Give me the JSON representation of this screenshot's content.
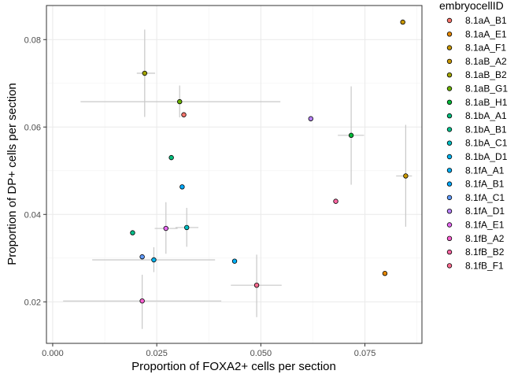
{
  "chart_data": {
    "type": "scatter",
    "xlabel": "Proportion of FOXA2+ cells per section",
    "ylabel": "Proportion of DP+ cells per section",
    "xlim": [
      -0.0015,
      0.0887
    ],
    "ylim": [
      0.0105,
      0.0878
    ],
    "x_ticks": [
      {
        "value": 0.0,
        "label": "0.000"
      },
      {
        "value": 0.025,
        "label": "0.025"
      },
      {
        "value": 0.05,
        "label": "0.050"
      },
      {
        "value": 0.075,
        "label": "0.075"
      }
    ],
    "y_ticks": [
      {
        "value": 0.02,
        "label": "0.02"
      },
      {
        "value": 0.04,
        "label": "0.04"
      },
      {
        "value": 0.06,
        "label": "0.06"
      },
      {
        "value": 0.08,
        "label": "0.08"
      }
    ],
    "grid": true,
    "legend_position": "right",
    "legend_title": "embryocellID",
    "errorbar_color": "#c8c8c8",
    "series": [
      {
        "name": "8.1aA_B1",
        "color": "#F8766D",
        "x": 0.0315,
        "y": 0.0628,
        "xerr": null,
        "yerr": null
      },
      {
        "name": "8.1aA_E1",
        "color": "#E58700",
        "x": 0.0798,
        "y": 0.0265,
        "xerr": null,
        "yerr": null
      },
      {
        "name": "8.1aA_F1",
        "color": "#C99800",
        "x": 0.0841,
        "y": 0.084,
        "xerr": null,
        "yerr": null
      },
      {
        "name": "8.1aB_A2",
        "color": "#C99800",
        "x": 0.0848,
        "y": 0.0488,
        "xerr": [
          0.0825,
          0.0863
        ],
        "yerr": [
          0.0372,
          0.0605
        ]
      },
      {
        "name": "8.1aB_B2",
        "color": "#A3A500",
        "x": 0.0221,
        "y": 0.0723,
        "xerr": [
          0.0202,
          0.0246
        ],
        "yerr": [
          0.0623,
          0.0823
        ]
      },
      {
        "name": "8.1aB_G1",
        "color": "#6BB100",
        "x": 0.0305,
        "y": 0.0658,
        "xerr": [
          0.0067,
          0.0547
        ],
        "yerr": [
          0.0622,
          0.0695
        ]
      },
      {
        "name": "8.1aB_H1",
        "color": "#00BA38",
        "x": 0.0717,
        "y": 0.0581,
        "xerr": [
          0.0685,
          0.0748
        ],
        "yerr": [
          0.0468,
          0.0693
        ]
      },
      {
        "name": "8.1bA_A1",
        "color": "#00BF7D",
        "x": 0.0285,
        "y": 0.053,
        "xerr": null,
        "yerr": null
      },
      {
        "name": "8.1bA_B1",
        "color": "#00C08B",
        "x": 0.0192,
        "y": 0.0358,
        "xerr": null,
        "yerr": null
      },
      {
        "name": "8.1bA_C1",
        "color": "#00BFC4",
        "x": 0.0322,
        "y": 0.037,
        "xerr": [
          0.0295,
          0.035
        ],
        "yerr": [
          0.0326,
          0.0415
        ]
      },
      {
        "name": "8.1bA_D1",
        "color": "#00B4F0",
        "x": 0.0243,
        "y": 0.0296,
        "xerr": [
          0.0095,
          0.039
        ],
        "yerr": [
          0.0268,
          0.0325
        ]
      },
      {
        "name": "8.1fA_A1",
        "color": "#00B0F6",
        "x": 0.0437,
        "y": 0.0293,
        "xerr": null,
        "yerr": null
      },
      {
        "name": "8.1fA_B1",
        "color": "#00A9FF",
        "x": 0.0311,
        "y": 0.0463,
        "xerr": null,
        "yerr": null
      },
      {
        "name": "8.1fA_C1",
        "color": "#619CFF",
        "x": 0.0215,
        "y": 0.0303,
        "xerr": null,
        "yerr": null
      },
      {
        "name": "8.1fA_D1",
        "color": "#B983FF",
        "x": 0.062,
        "y": 0.0619,
        "xerr": null,
        "yerr": null
      },
      {
        "name": "8.1fA_E1",
        "color": "#E76BF3",
        "x": 0.0272,
        "y": 0.0368,
        "xerr": [
          0.0245,
          0.03
        ],
        "yerr": [
          0.031,
          0.0428
        ]
      },
      {
        "name": "8.1fB_A2",
        "color": "#FD61D1",
        "x": 0.0215,
        "y": 0.0202,
        "xerr": [
          0.0025,
          0.0405
        ],
        "yerr": [
          0.0138,
          0.0262
        ]
      },
      {
        "name": "8.1fB_B2",
        "color": "#FF67A4",
        "x": 0.068,
        "y": 0.043,
        "xerr": null,
        "yerr": null
      },
      {
        "name": "8.1fB_F1",
        "color": "#FF6C91",
        "x": 0.049,
        "y": 0.0238,
        "xerr": [
          0.0428,
          0.055
        ],
        "yerr": [
          0.0165,
          0.0308
        ]
      }
    ]
  }
}
